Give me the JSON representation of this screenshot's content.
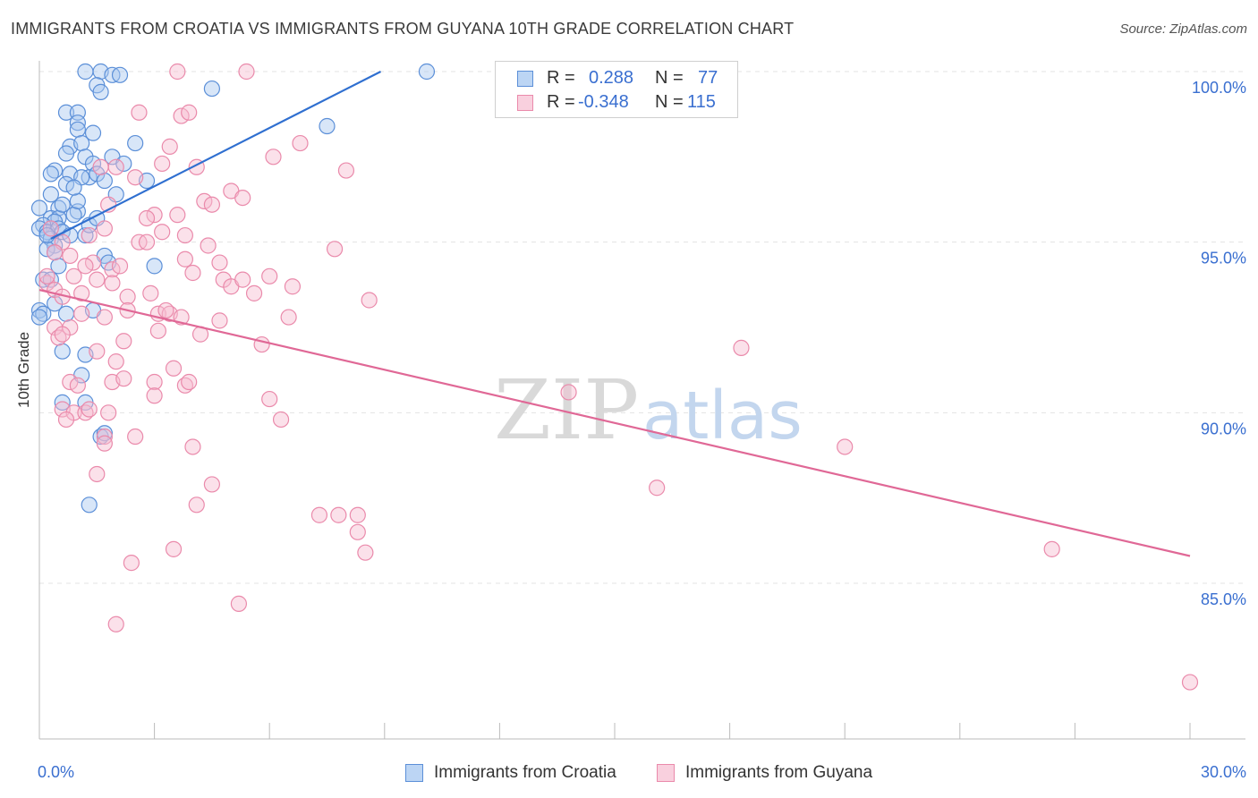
{
  "title": "IMMIGRANTS FROM CROATIA VS IMMIGRANTS FROM GUYANA 10TH GRADE CORRELATION CHART",
  "source": "Source: ZipAtlas.com",
  "watermark": {
    "zip": "ZIP",
    "atlas": "atlas"
  },
  "colors": {
    "croatia_fill": "#a9c8f0",
    "croatia_stroke": "#5b8fd8",
    "croatia_line": "#2f6fd0",
    "guyana_fill": "#f6bdd0",
    "guyana_stroke": "#ea8aab",
    "guyana_line": "#e06896",
    "tick_label": "#3a6fd0",
    "grid": "#e3e3e3"
  },
  "legend": {
    "r_label": "R =",
    "n_label": "N =",
    "croatia": {
      "r": "0.288",
      "n": "77"
    },
    "guyana": {
      "r": "-0.348",
      "n": "115"
    }
  },
  "bottom_legend": {
    "croatia": "Immigrants from Croatia",
    "guyana": "Immigrants from Guyana"
  },
  "chart_data": {
    "type": "scatter",
    "title": "IMMIGRANTS FROM CROATIA VS IMMIGRANTS FROM GUYANA 10TH GRADE CORRELATION CHART",
    "xlabel": "",
    "ylabel": "10th Grade",
    "xlim": [
      0,
      30
    ],
    "ylim": [
      80.5,
      101.0
    ],
    "x_tick_labels": [
      {
        "value": 0,
        "label": "0.0%"
      },
      {
        "value": 30,
        "label": "30.0%"
      }
    ],
    "y_tick_labels": [
      {
        "value": 100,
        "label": "100.0%"
      },
      {
        "value": 95,
        "label": "95.0%"
      },
      {
        "value": 90,
        "label": "90.0%"
      },
      {
        "value": 85,
        "label": "85.0%"
      }
    ],
    "series": [
      {
        "name": "Immigrants from Croatia",
        "r": 0.288,
        "n": 77,
        "trend": {
          "x": [
            0.3,
            8.9
          ],
          "y": [
            95.1,
            100.0
          ]
        },
        "points": [
          [
            1.2,
            100.0
          ],
          [
            1.6,
            100.0
          ],
          [
            1.9,
            99.9
          ],
          [
            1.5,
            99.6
          ],
          [
            1.6,
            99.4
          ],
          [
            2.1,
            99.9
          ],
          [
            4.5,
            99.5
          ],
          [
            10.1,
            100.0
          ],
          [
            0.7,
            98.8
          ],
          [
            1.0,
            98.8
          ],
          [
            1.0,
            98.5
          ],
          [
            1.0,
            98.3
          ],
          [
            1.4,
            98.2
          ],
          [
            2.5,
            97.9
          ],
          [
            7.5,
            98.4
          ],
          [
            0.8,
            97.8
          ],
          [
            1.1,
            97.9
          ],
          [
            0.7,
            97.6
          ],
          [
            1.2,
            97.5
          ],
          [
            1.9,
            97.5
          ],
          [
            1.4,
            97.3
          ],
          [
            0.4,
            97.1
          ],
          [
            0.8,
            97.0
          ],
          [
            1.3,
            96.9
          ],
          [
            1.5,
            97.0
          ],
          [
            1.1,
            96.9
          ],
          [
            0.3,
            97.0
          ],
          [
            0.7,
            96.7
          ],
          [
            2.8,
            96.8
          ],
          [
            0.3,
            96.4
          ],
          [
            2.0,
            96.4
          ],
          [
            0.0,
            96.0
          ],
          [
            0.5,
            96.0
          ],
          [
            1.0,
            95.9
          ],
          [
            0.3,
            95.7
          ],
          [
            0.5,
            95.7
          ],
          [
            0.4,
            95.6
          ],
          [
            0.1,
            95.5
          ],
          [
            0.0,
            95.4
          ],
          [
            0.2,
            95.3
          ],
          [
            0.5,
            95.4
          ],
          [
            0.6,
            95.3
          ],
          [
            1.2,
            95.2
          ],
          [
            1.3,
            95.5
          ],
          [
            0.3,
            95.1
          ],
          [
            0.4,
            94.9
          ],
          [
            0.2,
            94.8
          ],
          [
            0.4,
            94.7
          ],
          [
            1.7,
            94.6
          ],
          [
            1.8,
            94.4
          ],
          [
            3.0,
            94.3
          ],
          [
            0.5,
            94.3
          ],
          [
            0.1,
            93.9
          ],
          [
            0.3,
            93.9
          ],
          [
            0.0,
            93.0
          ],
          [
            0.1,
            92.9
          ],
          [
            0.0,
            92.8
          ],
          [
            0.7,
            92.9
          ],
          [
            1.4,
            93.0
          ],
          [
            0.6,
            91.8
          ],
          [
            1.2,
            91.7
          ],
          [
            1.1,
            91.1
          ],
          [
            0.6,
            90.3
          ],
          [
            1.2,
            90.3
          ],
          [
            1.6,
            89.3
          ],
          [
            1.7,
            89.4
          ],
          [
            1.3,
            87.3
          ],
          [
            0.6,
            96.1
          ],
          [
            0.9,
            95.8
          ],
          [
            0.2,
            95.2
          ],
          [
            1.0,
            96.2
          ],
          [
            0.8,
            95.2
          ],
          [
            1.5,
            95.7
          ],
          [
            0.4,
            93.2
          ],
          [
            2.2,
            97.3
          ],
          [
            1.7,
            96.8
          ],
          [
            0.9,
            96.6
          ]
        ]
      },
      {
        "name": "Immigrants from Guyana",
        "r": -0.348,
        "n": 115,
        "trend": {
          "x": [
            0.0,
            30.0
          ],
          "y": [
            93.6,
            85.8
          ]
        },
        "points": [
          [
            3.6,
            100.0
          ],
          [
            5.4,
            100.0
          ],
          [
            2.6,
            98.8
          ],
          [
            3.7,
            98.7
          ],
          [
            3.9,
            98.8
          ],
          [
            3.4,
            97.8
          ],
          [
            6.8,
            97.9
          ],
          [
            6.1,
            97.5
          ],
          [
            3.2,
            97.3
          ],
          [
            1.6,
            97.2
          ],
          [
            2.0,
            97.2
          ],
          [
            2.5,
            96.9
          ],
          [
            4.1,
            97.2
          ],
          [
            8.0,
            97.1
          ],
          [
            4.3,
            96.2
          ],
          [
            4.5,
            96.1
          ],
          [
            5.0,
            96.5
          ],
          [
            5.3,
            96.3
          ],
          [
            1.8,
            96.1
          ],
          [
            3.0,
            95.8
          ],
          [
            3.6,
            95.8
          ],
          [
            1.7,
            95.4
          ],
          [
            2.6,
            95.0
          ],
          [
            2.8,
            95.0
          ],
          [
            3.2,
            95.3
          ],
          [
            7.7,
            94.8
          ],
          [
            0.6,
            95.0
          ],
          [
            0.4,
            94.7
          ],
          [
            1.4,
            94.4
          ],
          [
            1.9,
            94.2
          ],
          [
            2.1,
            94.3
          ],
          [
            3.8,
            94.5
          ],
          [
            4.0,
            94.1
          ],
          [
            4.7,
            94.4
          ],
          [
            4.8,
            93.9
          ],
          [
            5.0,
            93.7
          ],
          [
            5.3,
            93.9
          ],
          [
            6.0,
            94.0
          ],
          [
            6.6,
            93.7
          ],
          [
            0.2,
            93.8
          ],
          [
            0.4,
            93.6
          ],
          [
            0.6,
            93.4
          ],
          [
            0.9,
            94.0
          ],
          [
            1.1,
            93.5
          ],
          [
            1.5,
            93.9
          ],
          [
            2.3,
            93.4
          ],
          [
            8.6,
            93.3
          ],
          [
            2.3,
            93.0
          ],
          [
            3.1,
            92.9
          ],
          [
            3.4,
            92.9
          ],
          [
            3.7,
            92.8
          ],
          [
            1.1,
            92.9
          ],
          [
            1.7,
            92.8
          ],
          [
            4.7,
            92.7
          ],
          [
            6.5,
            92.8
          ],
          [
            0.4,
            92.5
          ],
          [
            0.8,
            92.5
          ],
          [
            3.1,
            92.4
          ],
          [
            4.2,
            92.3
          ],
          [
            0.5,
            92.2
          ],
          [
            5.8,
            92.0
          ],
          [
            2.0,
            91.5
          ],
          [
            18.3,
            91.9
          ],
          [
            3.5,
            91.3
          ],
          [
            0.8,
            90.9
          ],
          [
            1.9,
            90.9
          ],
          [
            2.2,
            91.0
          ],
          [
            3.0,
            90.9
          ],
          [
            3.8,
            90.8
          ],
          [
            3.9,
            90.9
          ],
          [
            1.0,
            90.8
          ],
          [
            3.0,
            90.5
          ],
          [
            6.0,
            90.4
          ],
          [
            13.8,
            90.6
          ],
          [
            0.6,
            90.1
          ],
          [
            0.9,
            90.0
          ],
          [
            1.2,
            90.0
          ],
          [
            1.3,
            90.1
          ],
          [
            1.8,
            90.0
          ],
          [
            0.7,
            89.8
          ],
          [
            6.3,
            89.8
          ],
          [
            1.7,
            89.3
          ],
          [
            2.5,
            89.3
          ],
          [
            4.0,
            89.0
          ],
          [
            21.0,
            89.0
          ],
          [
            1.7,
            89.1
          ],
          [
            1.5,
            88.2
          ],
          [
            4.5,
            87.9
          ],
          [
            16.1,
            87.8
          ],
          [
            4.1,
            87.3
          ],
          [
            7.3,
            87.0
          ],
          [
            7.8,
            87.0
          ],
          [
            8.3,
            87.0
          ],
          [
            8.3,
            86.5
          ],
          [
            8.5,
            85.9
          ],
          [
            3.5,
            86.0
          ],
          [
            2.4,
            85.6
          ],
          [
            26.4,
            86.0
          ],
          [
            5.2,
            84.4
          ],
          [
            2.0,
            83.8
          ],
          [
            30.0,
            82.1
          ],
          [
            0.3,
            95.4
          ],
          [
            1.2,
            94.3
          ],
          [
            2.8,
            95.7
          ],
          [
            3.3,
            93.0
          ],
          [
            0.2,
            94.0
          ],
          [
            0.6,
            92.3
          ],
          [
            1.3,
            95.2
          ],
          [
            2.9,
            93.5
          ],
          [
            1.9,
            93.8
          ],
          [
            0.8,
            94.6
          ],
          [
            3.8,
            95.2
          ],
          [
            4.4,
            94.9
          ],
          [
            5.6,
            93.5
          ],
          [
            2.2,
            92.1
          ],
          [
            1.5,
            91.8
          ]
        ]
      }
    ]
  }
}
